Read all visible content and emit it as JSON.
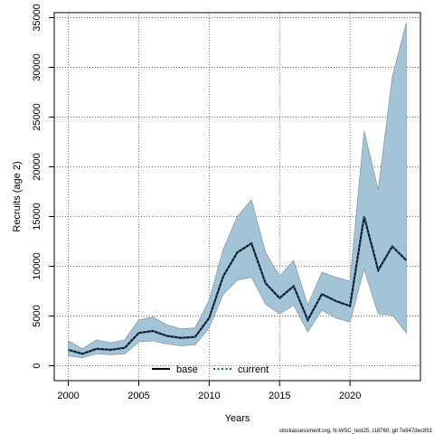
{
  "chart_data": {
    "type": "area",
    "xlabel": "Years",
    "ylabel": "Recruits (age 2)",
    "xlim": [
      1999,
      2025
    ],
    "ylim": [
      -1500,
      35500
    ],
    "x_ticks": [
      2000,
      2005,
      2010,
      2015,
      2020
    ],
    "y_ticks": [
      0,
      5000,
      10000,
      15000,
      20000,
      25000,
      30000,
      35000
    ],
    "grid": true,
    "legend_position": "bottom-center",
    "x": [
      2000,
      2001,
      2002,
      2003,
      2004,
      2005,
      2006,
      2007,
      2008,
      2009,
      2010,
      2011,
      2012,
      2013,
      2014,
      2015,
      2016,
      2017,
      2018,
      2019,
      2020,
      2021,
      2022,
      2023,
      2024
    ],
    "band": {
      "lower": [
        1000,
        800,
        1200,
        1100,
        1200,
        2400,
        2500,
        2200,
        2000,
        2100,
        3800,
        7200,
        8600,
        8900,
        6200,
        5200,
        6100,
        3400,
        5600,
        4800,
        4400,
        9700,
        5200,
        5100,
        3300
      ],
      "upper": [
        2500,
        1700,
        2600,
        2300,
        2600,
        4600,
        4900,
        4100,
        3700,
        3800,
        6600,
        11700,
        15000,
        16700,
        11400,
        9000,
        10600,
        6100,
        9400,
        8900,
        8500,
        23600,
        17700,
        29000,
        34500
      ],
      "color": "#a3c3d7",
      "edge_color": "#8a9aa5"
    },
    "series": [
      {
        "name": "base",
        "style": "solid",
        "color": "#000000",
        "values": [
          1600,
          1200,
          1700,
          1600,
          1800,
          3300,
          3500,
          3000,
          2800,
          2900,
          4800,
          9000,
          11400,
          12300,
          8300,
          6800,
          8000,
          4600,
          7200,
          6500,
          6000,
          15000,
          9600,
          12000,
          10600
        ]
      },
      {
        "name": "current",
        "style": "dotted",
        "color": "#1a5a80",
        "values": [
          1600,
          1200,
          1700,
          1600,
          1800,
          3300,
          3500,
          3000,
          2800,
          2900,
          4800,
          9000,
          11400,
          12300,
          8300,
          6800,
          8000,
          4600,
          7200,
          6500,
          6000,
          15000,
          9600,
          12000,
          10600
        ]
      }
    ],
    "footer": "stockassessment.org, N-WSC_test25, r18760, git:7e947dec851"
  }
}
